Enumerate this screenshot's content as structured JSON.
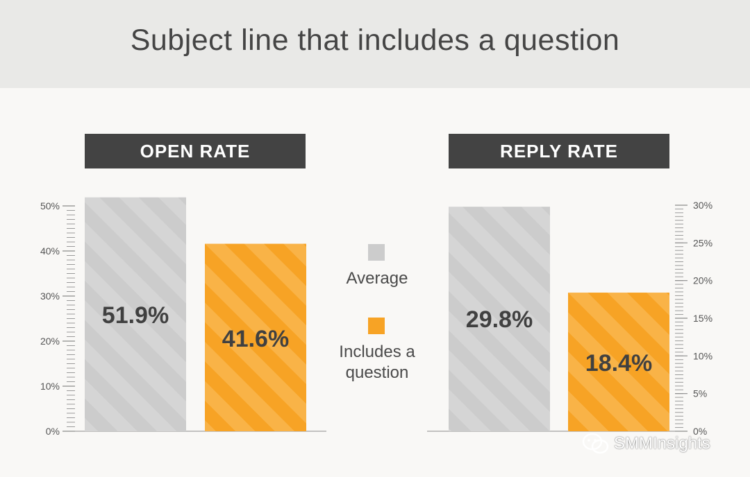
{
  "header": {
    "title": "Subject line that includes a question"
  },
  "colors": {
    "average": "#cccccc",
    "question": "#f7a325",
    "label_bg": "#434343",
    "text": "#454545"
  },
  "legend": [
    {
      "label": "Average",
      "color": "#cccccc"
    },
    {
      "label": "Includes a\nquestion",
      "color": "#f7a325"
    }
  ],
  "watermark": {
    "text": "SMMInsights",
    "icon": "wechat-icon"
  },
  "chart_data": [
    {
      "type": "bar",
      "title": "OPEN RATE",
      "categories": [
        "Average",
        "Includes a question"
      ],
      "values": [
        51.9,
        41.6
      ],
      "value_labels": [
        "51.9%",
        "41.6%"
      ],
      "ylim": [
        0,
        50
      ],
      "yticks": [
        "0%",
        "10%",
        "20%",
        "30%",
        "40%",
        "50%"
      ],
      "axis_side": "left"
    },
    {
      "type": "bar",
      "title": "REPLY RATE",
      "categories": [
        "Average",
        "Includes a question"
      ],
      "values": [
        29.8,
        18.4
      ],
      "value_labels": [
        "29.8%",
        "18.4%"
      ],
      "ylim": [
        0,
        30
      ],
      "yticks": [
        "0%",
        "5%",
        "10%",
        "15%",
        "20%",
        "25%",
        "30%"
      ],
      "axis_side": "right"
    }
  ]
}
